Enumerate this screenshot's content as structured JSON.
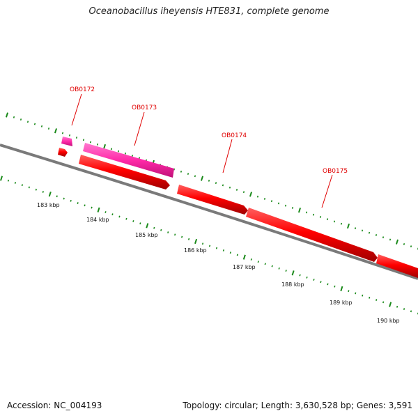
{
  "header": {
    "title": "Oceanobacillus iheyensis HTE831, complete genome"
  },
  "footer": {
    "accession": "Accession: NC_004193",
    "stats": "Topology: circular; Length: 3,630,528 bp; Genes: 3,591"
  },
  "scale_labels": [
    "183 kbp",
    "184 kbp",
    "185 kbp",
    "186 kbp",
    "187 kbp",
    "188 kbp",
    "189 kbp",
    "190 kbp"
  ],
  "gene_labels": [
    "OB0172",
    "OB0173",
    "OB0174",
    "OB0175"
  ],
  "colors": {
    "forward_gene": "#ff0000",
    "rna_gene": "#ff2aa0",
    "tick": "#1a8a1a",
    "backbone": "#888888",
    "label": "#e00000"
  }
}
